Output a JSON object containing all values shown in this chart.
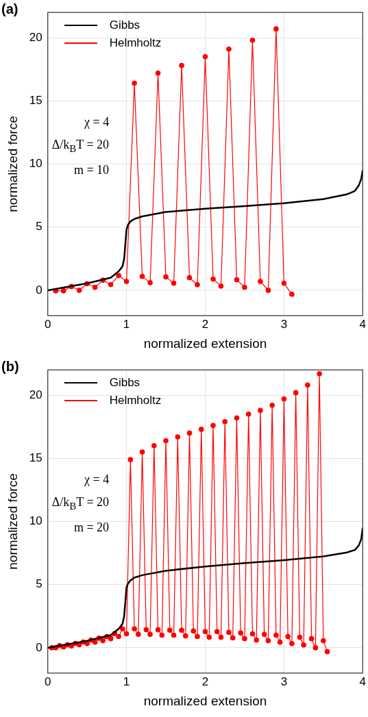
{
  "chart_data": [
    {
      "type": "line",
      "title": "(a)",
      "xlabel": "normalized extension",
      "ylabel": "normalized force",
      "xlim": [
        0,
        4
      ],
      "xticks": [
        0,
        1,
        2,
        3,
        4
      ],
      "ylim": [
        -2,
        22
      ],
      "yticks": [
        0,
        5,
        10,
        15,
        20
      ],
      "grid": true,
      "legend": "top left",
      "annotations": [
        "χ = 4",
        "Δ/k$_{B}$T = 20",
        "m = 10"
      ],
      "series": [
        {
          "name": "Gibbs",
          "color": "#000000",
          "marker": "none",
          "x": [
            0,
            0.5,
            0.8,
            0.9,
            0.95,
            0.97,
            0.99,
            1.0,
            1.02,
            1.05,
            1.1,
            1.2,
            1.5,
            2,
            2.5,
            3,
            3.5,
            3.8,
            3.9,
            3.95,
            3.98,
            4.0
          ],
          "values": [
            0,
            0.55,
            1.0,
            1.5,
            1.9,
            2.5,
            4.0,
            4.8,
            5.2,
            5.45,
            5.65,
            5.85,
            6.2,
            6.46,
            6.67,
            6.89,
            7.22,
            7.6,
            7.87,
            8.3,
            8.8,
            9.5
          ]
        },
        {
          "name": "Helmholtz",
          "color": "#ff0000",
          "marker": "circle",
          "x": [
            0.1,
            0.2,
            0.3,
            0.4,
            0.5,
            0.6,
            0.7,
            0.8,
            0.9,
            1.0,
            1.1,
            1.2,
            1.3,
            1.4,
            1.5,
            1.6,
            1.7,
            1.8,
            1.9,
            2.0,
            2.1,
            2.2,
            2.3,
            2.4,
            2.5,
            2.6,
            2.7,
            2.8,
            2.9,
            3.0,
            3.1
          ],
          "values": [
            -0.04,
            -0.04,
            0.3,
            0.0,
            0.52,
            0.24,
            0.8,
            0.46,
            1.17,
            0.7,
            16.4,
            1.1,
            0.6,
            17.2,
            1.06,
            0.56,
            17.8,
            1.0,
            0.44,
            18.5,
            0.89,
            0.33,
            19.1,
            0.83,
            0.24,
            19.8,
            0.7,
            0.0,
            20.7,
            0.56,
            -0.31
          ]
        }
      ]
    },
    {
      "type": "line",
      "title": "(b)",
      "xlabel": "normalized extension",
      "ylabel": "normalized force",
      "xlim": [
        0,
        4
      ],
      "xticks": [
        0,
        1,
        2,
        3,
        4
      ],
      "ylim": [
        -2,
        22
      ],
      "yticks": [
        0,
        5,
        10,
        15,
        20
      ],
      "grid": true,
      "legend": "top left",
      "annotations": [
        "χ = 4",
        "Δ/k$_{B}$T = 20",
        "m = 20"
      ],
      "series": [
        {
          "name": "Gibbs",
          "color": "#000000",
          "marker": "none",
          "x": [
            0,
            0.5,
            0.8,
            0.9,
            0.95,
            0.97,
            0.99,
            1.0,
            1.02,
            1.05,
            1.1,
            1.2,
            1.5,
            2,
            2.5,
            3,
            3.5,
            3.8,
            3.9,
            3.95,
            3.98,
            4.0
          ],
          "values": [
            0,
            0.55,
            1.0,
            1.5,
            1.9,
            2.5,
            4.0,
            4.8,
            5.1,
            5.33,
            5.55,
            5.75,
            6.1,
            6.44,
            6.7,
            6.94,
            7.24,
            7.55,
            7.74,
            8.1,
            8.57,
            9.5
          ]
        },
        {
          "name": "Helmholtz",
          "color": "#ff0000",
          "marker": "circle",
          "x": [
            0.05,
            0.1,
            0.15,
            0.2,
            0.25,
            0.3,
            0.35,
            0.4,
            0.45,
            0.5,
            0.55,
            0.6,
            0.65,
            0.7,
            0.75,
            0.8,
            0.85,
            0.9,
            0.95,
            1.0,
            1.05,
            1.1,
            1.15,
            1.2,
            1.25,
            1.3,
            1.35,
            1.4,
            1.45,
            1.5,
            1.55,
            1.6,
            1.65,
            1.7,
            1.75,
            1.8,
            1.85,
            1.9,
            1.95,
            2.0,
            2.05,
            2.1,
            2.15,
            2.2,
            2.25,
            2.3,
            2.35,
            2.4,
            2.45,
            2.5,
            2.55,
            2.6,
            2.65,
            2.7,
            2.75,
            2.8,
            2.85,
            2.9,
            2.95,
            3.0,
            3.05,
            3.1,
            3.15,
            3.2,
            3.25,
            3.3,
            3.35,
            3.4,
            3.45,
            3.5,
            3.55
          ],
          "values": [
            0,
            0,
            0.17,
            0.07,
            0.24,
            0.15,
            0.35,
            0.24,
            0.46,
            0.33,
            0.61,
            0.44,
            0.76,
            0.56,
            0.89,
            0.72,
            1.13,
            0.89,
            1.5,
            1.11,
            14.9,
            1.5,
            1.06,
            15.5,
            1.43,
            1.06,
            16.0,
            1.43,
            1.0,
            16.4,
            1.39,
            1.0,
            16.7,
            1.39,
            0.94,
            17.0,
            1.33,
            0.89,
            17.3,
            1.28,
            0.83,
            17.6,
            1.28,
            0.83,
            17.9,
            1.22,
            0.78,
            18.2,
            1.17,
            0.72,
            18.5,
            1.11,
            0.61,
            18.8,
            1.06,
            0.56,
            19.2,
            1.0,
            0.44,
            19.7,
            0.89,
            0.33,
            20.2,
            0.83,
            0.22,
            20.8,
            0.72,
            0.0,
            21.7,
            0.56,
            -0.31
          ]
        }
      ]
    }
  ]
}
